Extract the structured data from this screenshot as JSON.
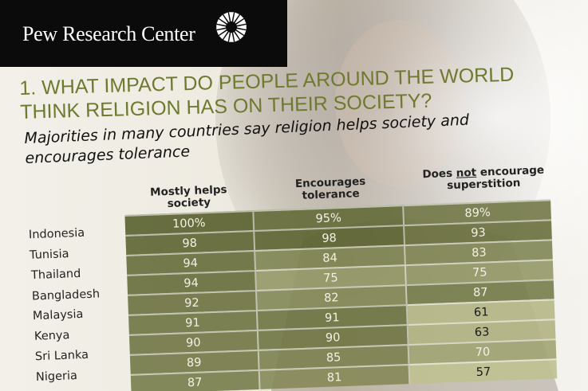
{
  "brand": {
    "name": "Pew Research Center",
    "logo_icon": "sunburst-logo-icon"
  },
  "title": "1. WHAT IMPACT DO PEOPLE AROUND THE WORLD THINK RELIGION HAS ON THEIR SOCIETY?",
  "subtitle": "Majorities in many countries say religion helps society and encourages tolerance",
  "table": {
    "columns": [
      {
        "pre": "Mostly helps society",
        "underlined": "",
        "post": ""
      },
      {
        "pre": "Encourages tolerance",
        "underlined": "",
        "post": ""
      },
      {
        "pre": "Does ",
        "underlined": "not",
        "post": " encourage superstition"
      }
    ],
    "rows": [
      {
        "country": "Indonesia",
        "values": [
          "100%",
          "95%",
          "89%"
        ]
      },
      {
        "country": "Tunisia",
        "values": [
          "98",
          "98",
          "93"
        ]
      },
      {
        "country": "Thailand",
        "values": [
          "94",
          "84",
          "83"
        ]
      },
      {
        "country": "Bangladesh",
        "values": [
          "94",
          "75",
          "75"
        ]
      },
      {
        "country": "Malaysia",
        "values": [
          "92",
          "82",
          "87"
        ]
      },
      {
        "country": "Kenya",
        "values": [
          "91",
          "91",
          "61"
        ]
      },
      {
        "country": "Sri Lanka",
        "values": [
          "90",
          "90",
          "63"
        ]
      },
      {
        "country": "Nigeria",
        "values": [
          "89",
          "85",
          "70"
        ]
      },
      {
        "country": "",
        "values": [
          "87",
          "81",
          "57"
        ]
      }
    ]
  },
  "colors": {
    "title_olive": "#6e7a2f",
    "cell_shade_dark": "#6b7038",
    "cell_shade_light": "#b8bb8a"
  }
}
